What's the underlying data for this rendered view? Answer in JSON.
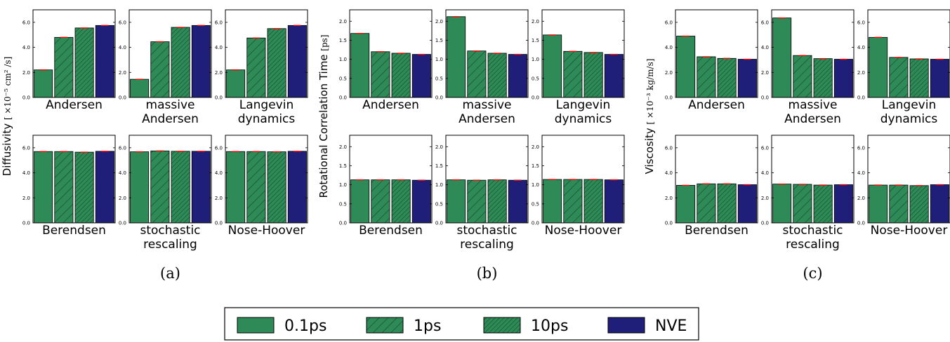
{
  "legend": [
    "0.1ps",
    "1ps",
    "10ps",
    "NVE"
  ],
  "colors": {
    "green": "#2e8b57",
    "navy": "#1f1f7a",
    "error": "#ff0000"
  },
  "chart_data": [
    {
      "type": "bar",
      "caption": "(a)",
      "ylabel_text": "Diffusivity",
      "ylabel_unit": "[ ×10⁻⁵ cm² /s]",
      "ylim": [
        0,
        7
      ],
      "yticks": [
        "0.0",
        "2.0",
        "4.0",
        "6.0"
      ],
      "categories": [
        "0.1ps",
        "1ps",
        "10ps",
        "NVE"
      ],
      "panels": [
        {
          "title": [
            "Andersen"
          ],
          "values": [
            2.2,
            4.8,
            5.55,
            5.75
          ]
        },
        {
          "title": [
            "massive",
            "Andersen"
          ],
          "values": [
            1.45,
            4.45,
            5.6,
            5.75
          ]
        },
        {
          "title": [
            "Langevin",
            "dynamics"
          ],
          "values": [
            2.2,
            4.75,
            5.5,
            5.75
          ]
        },
        {
          "title": [
            "Berendsen"
          ],
          "values": [
            5.7,
            5.7,
            5.65,
            5.72
          ]
        },
        {
          "title": [
            "stochastic",
            "rescaling"
          ],
          "values": [
            5.68,
            5.75,
            5.72,
            5.72
          ]
        },
        {
          "title": [
            "Nose-Hoover"
          ],
          "values": [
            5.7,
            5.7,
            5.68,
            5.72
          ]
        }
      ]
    },
    {
      "type": "bar",
      "caption": "(b)",
      "ylabel_text": "Rotational Correlation Time",
      "ylabel_unit": "[ps]",
      "ylim": [
        0,
        2.3
      ],
      "yticks": [
        "0.0",
        "0.5",
        "1.0",
        "1.5",
        "2.0"
      ],
      "categories": [
        "0.1ps",
        "1ps",
        "10ps",
        "NVE"
      ],
      "panels": [
        {
          "title": [
            "Andersen"
          ],
          "values": [
            1.68,
            1.2,
            1.16,
            1.13
          ]
        },
        {
          "title": [
            "massive",
            "Andersen"
          ],
          "values": [
            2.12,
            1.22,
            1.16,
            1.13
          ]
        },
        {
          "title": [
            "Langevin",
            "dynamics"
          ],
          "values": [
            1.64,
            1.21,
            1.18,
            1.13
          ]
        },
        {
          "title": [
            "Berendsen"
          ],
          "values": [
            1.13,
            1.13,
            1.13,
            1.12
          ]
        },
        {
          "title": [
            "stochastic",
            "rescaling"
          ],
          "values": [
            1.13,
            1.12,
            1.13,
            1.12
          ]
        },
        {
          "title": [
            "Nose-Hoover"
          ],
          "values": [
            1.14,
            1.14,
            1.14,
            1.13
          ]
        }
      ]
    },
    {
      "type": "bar",
      "caption": "(c)",
      "ylabel_text": "Viscosity",
      "ylabel_unit": "[ ×10⁻³ kg/m/s]",
      "ylim": [
        0,
        7
      ],
      "yticks": [
        "0.0",
        "2.0",
        "4.0",
        "6.0"
      ],
      "categories": [
        "0.1ps",
        "1ps",
        "10ps",
        "NVE"
      ],
      "panels": [
        {
          "title": [
            "Andersen"
          ],
          "values": [
            4.9,
            3.25,
            3.12,
            3.05
          ]
        },
        {
          "title": [
            "massive",
            "Andersen"
          ],
          "values": [
            6.35,
            3.35,
            3.1,
            3.05
          ]
        },
        {
          "title": [
            "Langevin",
            "dynamics"
          ],
          "values": [
            4.8,
            3.2,
            3.08,
            3.05
          ]
        },
        {
          "title": [
            "Berendsen"
          ],
          "values": [
            3.0,
            3.12,
            3.12,
            3.05
          ]
        },
        {
          "title": [
            "stochastic",
            "rescaling"
          ],
          "values": [
            3.1,
            3.08,
            3.02,
            3.05
          ]
        },
        {
          "title": [
            "Nose-Hoover"
          ],
          "values": [
            3.02,
            3.02,
            2.98,
            3.05
          ]
        }
      ]
    }
  ]
}
